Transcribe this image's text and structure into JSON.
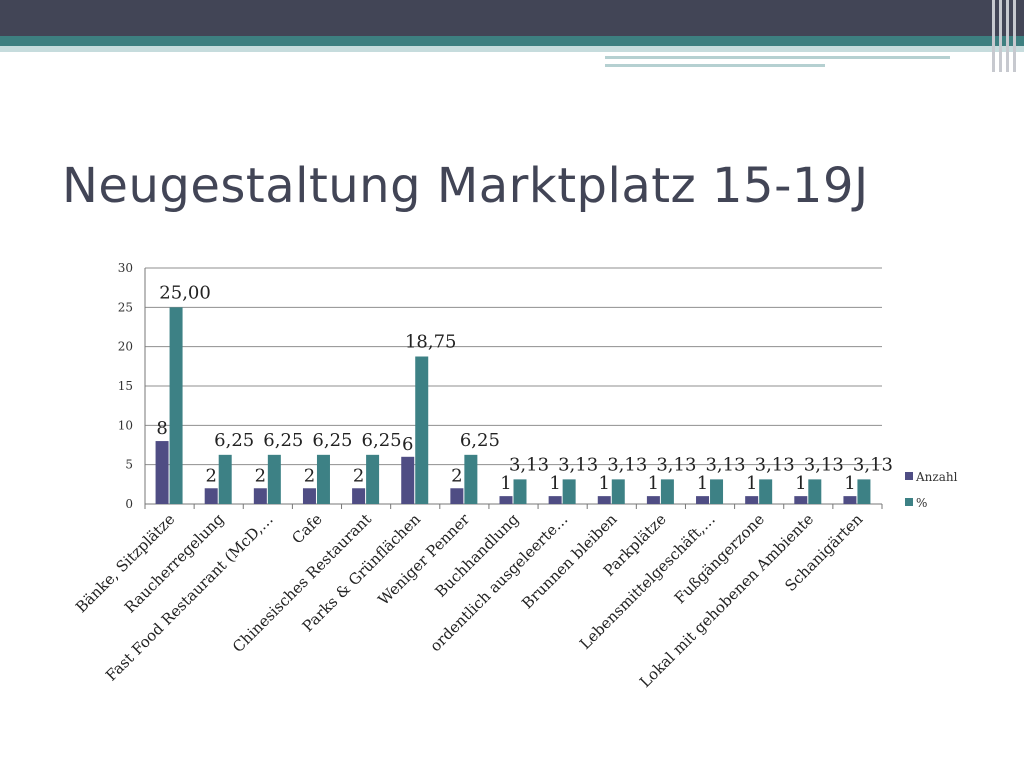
{
  "slide": {
    "title": "Neugestaltung Marktplatz 15-19J"
  },
  "colors": {
    "header_dark": "#424556",
    "header_teal": "#3d7f80",
    "series_anzahl": "#4f4d84",
    "series_percent": "#3d8185",
    "gridline": "#8f8f8f"
  },
  "chart_data": {
    "type": "bar",
    "title": "",
    "xlabel": "",
    "ylabel": "",
    "ylim": [
      0,
      30
    ],
    "yticks": [
      0,
      5,
      10,
      15,
      20,
      25,
      30
    ],
    "grid": true,
    "legend_position": "right",
    "categories": [
      "Bänke, Sitzplätze",
      "Raucherregelung",
      "Fast Food Restaurant (McD,…",
      "Cafe",
      "Chinesisches Restaurant",
      "Parks & Grünflächen",
      "Weniger Penner",
      "Buchhandlung",
      "ordentlich ausgeleerte…",
      "Brunnen bleiben",
      "Parkplätze",
      "Lebensmittelgeschäft,…",
      "Fußgängerzone",
      "Lokal mit gehobenen Ambiente",
      "Schanigärten"
    ],
    "series": [
      {
        "name": "Anzahl",
        "color": "#4f4d84",
        "values": [
          8,
          2,
          2,
          2,
          2,
          6,
          2,
          1,
          1,
          1,
          1,
          1,
          1,
          1,
          1
        ],
        "labels": [
          "8",
          "2",
          "2",
          "2",
          "2",
          "6",
          "2",
          "1",
          "1",
          "1",
          "1",
          "1",
          "1",
          "1",
          "1"
        ]
      },
      {
        "name": "%",
        "color": "#3d8185",
        "values": [
          25.0,
          6.25,
          6.25,
          6.25,
          6.25,
          18.75,
          6.25,
          3.13,
          3.13,
          3.13,
          3.13,
          3.13,
          3.13,
          3.13,
          3.13
        ],
        "labels": [
          "25,00",
          "6,25",
          "6,25",
          "6,25",
          "6,25",
          "18,75",
          "6,25",
          "3,13",
          "3,13",
          "3,13",
          "3,13",
          "3,13",
          "3,13",
          "3,13",
          "3,13"
        ]
      }
    ]
  }
}
